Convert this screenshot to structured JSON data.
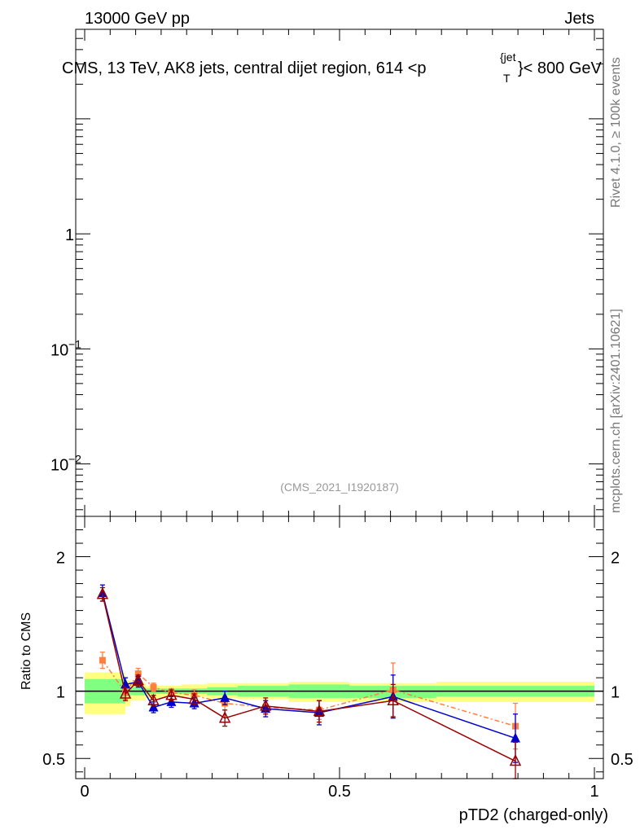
{
  "header": {
    "left": "13000 GeV pp",
    "right": "Jets",
    "title_main": "CMS, 13 TeV, AK8 jets, central dijet region, 614 <p",
    "title_sup": "{jet",
    "title_sub": "T",
    "title_tail": "}< 800 GeV"
  },
  "side": {
    "rivet": "Rivet 4.1.0, ≥ 100k events",
    "mcplots": "mcplots.cern.ch [arXiv:2401.10621]"
  },
  "watermark": "(CMS_2021_I1920187)",
  "chart_data": {
    "type": "line",
    "xlabel": "pTD2 (charged-only)",
    "ylabel_ratio": "Ratio to CMS",
    "xlim": [
      0,
      1
    ],
    "main_ylim": [
      0.0035,
      60
    ],
    "ratio_ylim": [
      0.35,
      2.3
    ],
    "main_ytick_labels": [
      {
        "value": 1,
        "label": "1",
        "sup": ""
      },
      {
        "value": 0.1,
        "label": "10",
        "sup": "−1"
      },
      {
        "value": 0.01,
        "label": "10",
        "sup": "−2"
      }
    ],
    "ratio_ytick_labels": [
      {
        "value": 0.5,
        "label": "0.5"
      },
      {
        "value": 1,
        "label": "1"
      },
      {
        "value": 2,
        "label": "2"
      }
    ],
    "xtick_labels": [
      {
        "value": 0,
        "label": "0"
      },
      {
        "value": 0.5,
        "label": "0.5"
      },
      {
        "value": 1,
        "label": "1"
      }
    ],
    "bins": [
      0,
      0.08,
      0.09,
      0.12,
      0.15,
      0.19,
      0.24,
      0.3,
      0.4,
      0.52,
      0.69,
      1.0
    ],
    "band_inner": [
      [
        0.91,
        1.09
      ],
      [
        0.96,
        1.04
      ],
      [
        0.97,
        1.03
      ],
      [
        0.98,
        1.02
      ],
      [
        0.98,
        1.02
      ],
      [
        0.98,
        1.02
      ],
      [
        0.97,
        1.03
      ],
      [
        0.96,
        1.04
      ],
      [
        0.95,
        1.05
      ],
      [
        0.95,
        1.04
      ],
      [
        0.96,
        1.04
      ]
    ],
    "band_outer": [
      [
        0.83,
        1.14
      ],
      [
        0.89,
        1.08
      ],
      [
        0.93,
        1.06
      ],
      [
        0.95,
        1.04
      ],
      [
        0.96,
        1.04
      ],
      [
        0.96,
        1.05
      ],
      [
        0.95,
        1.06
      ],
      [
        0.94,
        1.06
      ],
      [
        0.92,
        1.07
      ],
      [
        0.92,
        1.06
      ],
      [
        0.92,
        1.07
      ]
    ],
    "x": [
      0.035,
      0.08,
      0.105,
      0.135,
      0.17,
      0.215,
      0.275,
      0.355,
      0.46,
      0.605,
      0.845
    ],
    "series": [
      {
        "name": "orange-squares",
        "color": "#ff7f3f",
        "style": "dashdot",
        "marker": "square",
        "values": [
          1.23,
          0.99,
          1.13,
          1.03,
          0.99,
          0.97,
          0.91,
          0.88,
          0.86,
          1.01,
          0.74
        ],
        "errors": [
          0.06,
          0.05,
          0.04,
          0.03,
          0.03,
          0.04,
          0.05,
          0.05,
          0.07,
          0.2,
          0.17
        ]
      },
      {
        "name": "blue-triangles",
        "color": "#0000cc",
        "style": "solid",
        "marker": "triangle",
        "values": [
          1.73,
          1.05,
          1.07,
          0.88,
          0.92,
          0.91,
          0.95,
          0.87,
          0.84,
          0.96,
          0.65
        ],
        "errors": [
          0.06,
          0.05,
          0.04,
          0.04,
          0.04,
          0.04,
          0.05,
          0.06,
          0.09,
          0.16,
          0.18
        ]
      },
      {
        "name": "red-open-triangles",
        "color": "#990000",
        "style": "solid",
        "marker": "open-triangle",
        "values": [
          1.72,
          0.98,
          1.08,
          0.93,
          0.97,
          0.94,
          0.8,
          0.89,
          0.85,
          0.93,
          0.48
        ],
        "errors": [
          0.05,
          0.05,
          0.04,
          0.04,
          0.04,
          0.04,
          0.06,
          0.06,
          0.08,
          0.12,
          0.14
        ]
      }
    ]
  }
}
